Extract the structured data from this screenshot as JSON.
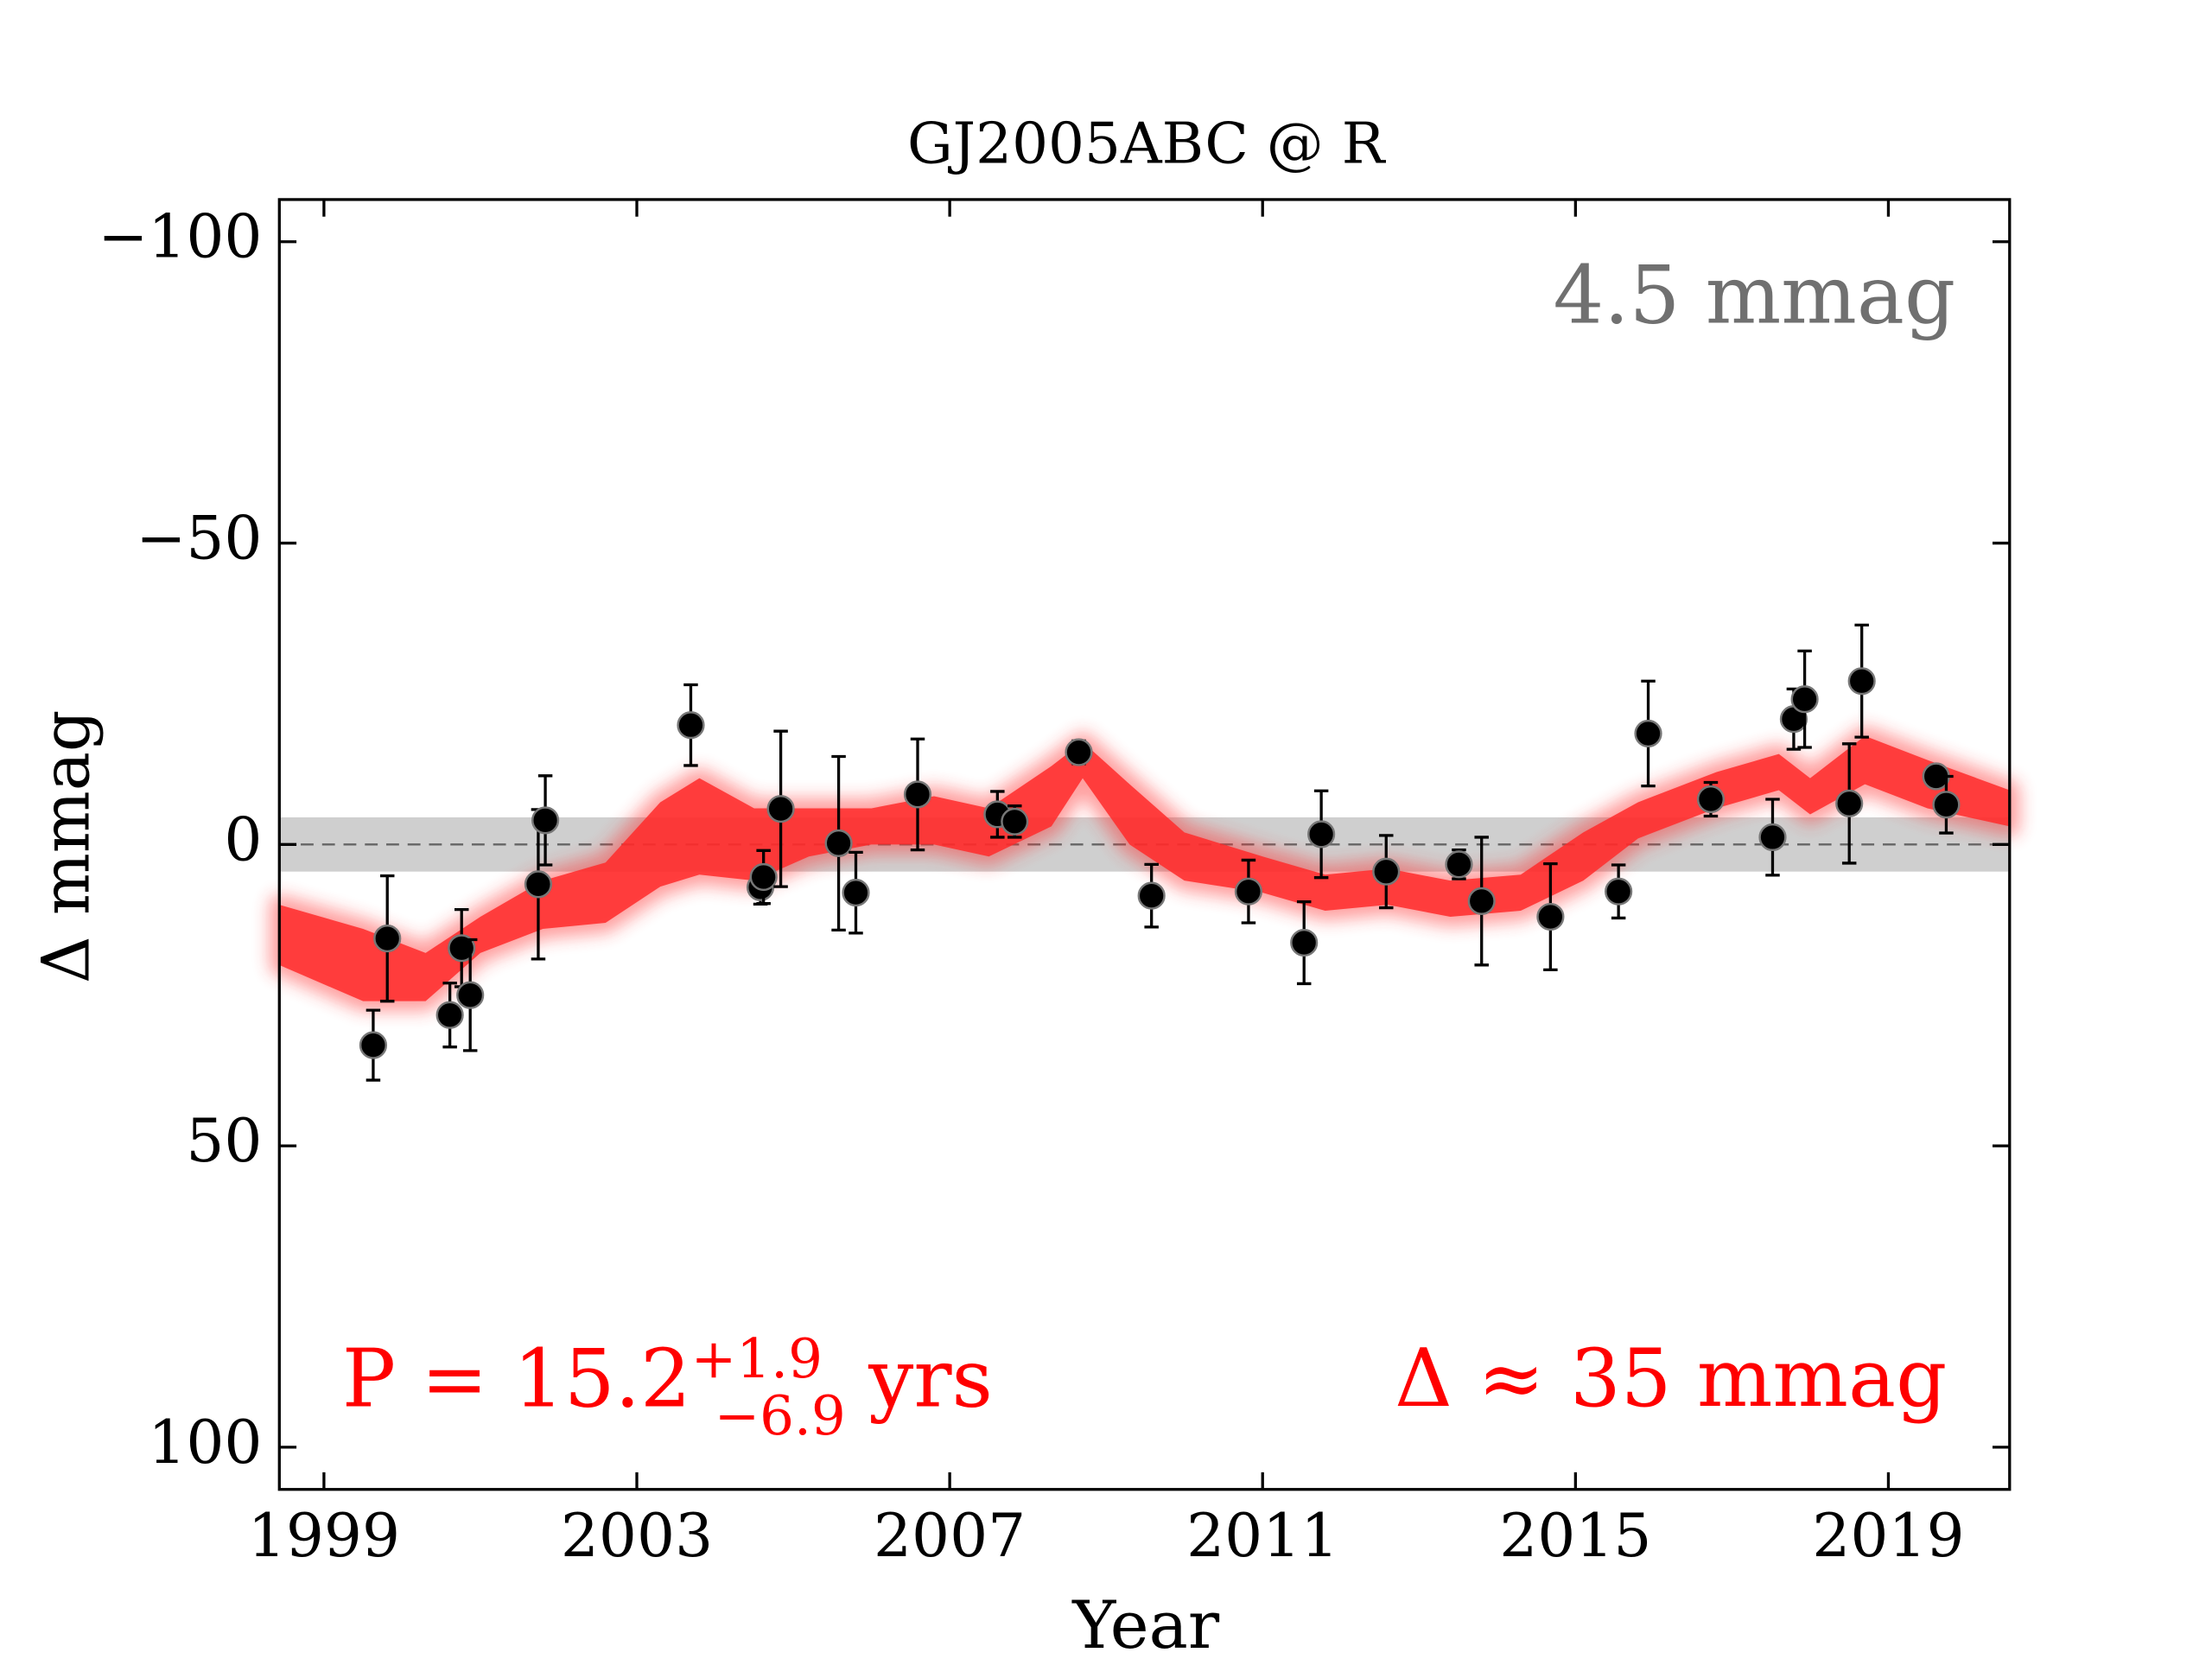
{
  "chart_data": {
    "type": "scatter",
    "title": "GJ2005ABC @ R",
    "xlabel": "Year",
    "ylabel": "Δ  mmag",
    "xlim": [
      1998.43,
      2020.55
    ],
    "ylim": [
      -107,
      107
    ],
    "y_inverted": true,
    "xticks": [
      1999,
      2003,
      2007,
      2011,
      2015,
      2019
    ],
    "yticks": [
      {
        "value": -100,
        "label": "−100"
      },
      {
        "value": -50,
        "label": "−50"
      },
      0,
      50,
      100
    ],
    "noise_band": 4.5,
    "noise_label": "4.5 mmag",
    "period": {
      "text": "P = 15.2",
      "plus": "+1.9",
      "minus": "−6.9",
      "unit": "yrs"
    },
    "amplitude_label": "Δ ≈ 35 mmag",
    "model": {
      "color": "#ff2a2a",
      "x": [
        1998.43,
        1999.5,
        2000.3,
        2001,
        2001.8,
        2002.6,
        2003.3,
        2003.8,
        2004.5,
        2005.2,
        2006,
        2006.8,
        2007.5,
        2008.3,
        2008.7,
        2009.3,
        2010,
        2011,
        2011.8,
        2012.6,
        2013.4,
        2014.3,
        2015.1,
        2015.8,
        2016.8,
        2017.6,
        2018,
        2018.7,
        2019.5,
        2020.55
      ],
      "lower": [
        10,
        14,
        18,
        12,
        6,
        3,
        -7,
        -11,
        -6,
        -6,
        -6,
        -8,
        -6,
        -13,
        -17,
        -10,
        -2,
        2,
        5,
        4,
        6,
        5,
        -2,
        -7,
        -12,
        -15,
        -11,
        -18,
        -14,
        -9
      ],
      "upper": [
        20,
        26,
        26,
        18,
        14,
        13,
        7,
        5,
        6,
        2,
        0,
        0,
        2,
        -3,
        -11,
        0,
        6,
        8,
        11,
        10,
        12,
        11,
        6,
        -1,
        -6,
        -9,
        -5,
        -10,
        -6,
        -3
      ]
    },
    "series": [
      {
        "color": "#000000",
        "x": [
          1999.63,
          1999.81,
          2000.61,
          2000.76,
          2000.87,
          2001.74,
          2001.83,
          2003.69,
          2004.58,
          2004.62,
          2004.84,
          2005.58,
          2005.8,
          2006.59,
          2007.61,
          2007.83,
          2008.65,
          2009.58,
          2010.82,
          2011.53,
          2011.75,
          2012.58,
          2013.51,
          2013.8,
          2014.68,
          2015.55,
          2015.93,
          2016.73,
          2017.52,
          2017.79,
          2017.93,
          2018.5,
          2018.66,
          2019.61,
          2019.74
        ],
        "values": [
          33.3,
          15.6,
          28.3,
          17.2,
          25.0,
          6.6,
          -4.0,
          -19.8,
          7.1,
          5.4,
          -5.9,
          -0.2,
          8.0,
          -8.3,
          -5.0,
          -3.8,
          -15.3,
          8.5,
          7.8,
          16.3,
          -1.7,
          4.5,
          3.3,
          9.4,
          12.0,
          7.8,
          -18.4,
          -7.5,
          -1.2,
          -20.8,
          -24.1,
          -6.8,
          -27.1,
          -11.3,
          -6.6
        ],
        "errors": [
          5.8,
          10.4,
          5.3,
          6.4,
          9.2,
          12.4,
          7.4,
          6.7,
          2.8,
          4.4,
          12.9,
          14.4,
          6.7,
          9.2,
          3.8,
          2.6,
          1.9,
          5.2,
          5.2,
          6.8,
          7.2,
          6.0,
          2.4,
          10.6,
          8.8,
          4.4,
          8.7,
          2.8,
          6.3,
          5.0,
          8.0,
          9.9,
          9.3,
          1.5,
          4.7
        ]
      }
    ]
  }
}
